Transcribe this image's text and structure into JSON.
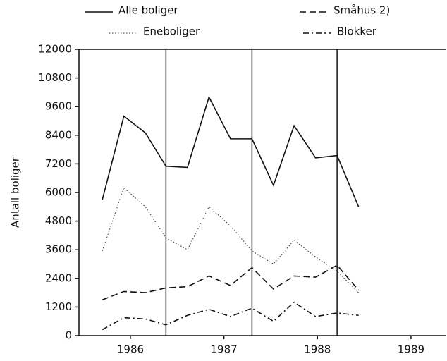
{
  "chart_data": {
    "type": "line",
    "y_label": "Antall boliger",
    "x": [
      1985.7,
      1985.93,
      1986.16,
      1986.38,
      1986.61,
      1986.84,
      1987.07,
      1987.3,
      1987.53,
      1987.75,
      1987.98,
      1988.21,
      1988.44
    ],
    "series": [
      {
        "name": "Alle boliger",
        "color": "#111111",
        "dash": "solid",
        "values": [
          5700,
          9200,
          8500,
          7100,
          7050,
          10000,
          8250,
          8250,
          6300,
          8800,
          7450,
          7550,
          5400
        ]
      },
      {
        "name": "Eneboliger",
        "color": "#333333",
        "dash": "dotted",
        "values": [
          3550,
          6200,
          5400,
          4100,
          3600,
          5400,
          4600,
          3550,
          3000,
          4000,
          3300,
          2700,
          1800
        ]
      },
      {
        "name": "Småhus 2)",
        "color": "#111111",
        "dash": "dashed",
        "values": [
          1500,
          1850,
          1800,
          2000,
          2050,
          2500,
          2100,
          2850,
          1950,
          2500,
          2450,
          2950,
          1900
        ]
      },
      {
        "name": "Blokker",
        "color": "#111111",
        "dash": "dashdot",
        "values": [
          250,
          750,
          700,
          450,
          850,
          1100,
          800,
          1150,
          600,
          1400,
          800,
          950,
          850
        ]
      }
    ],
    "xlim": [
      1985.45,
      1989.37
    ],
    "xticks": [
      1986,
      1987,
      1988,
      1989
    ],
    "ylim": [
      0,
      12000
    ],
    "yticks": [
      0,
      1200,
      2400,
      3600,
      4800,
      6000,
      7200,
      8400,
      9600,
      10800,
      12000
    ],
    "vlines": [
      1986.38,
      1987.3,
      1988.21
    ]
  }
}
